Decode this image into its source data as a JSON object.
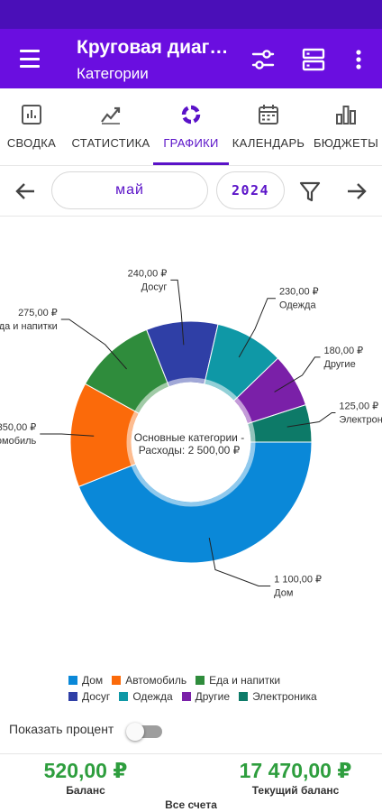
{
  "app_bar": {
    "title": "Круговая диаграмма",
    "subtitle": "Категории",
    "icons": [
      "menu-icon",
      "sliders-icon",
      "storage-icon",
      "more-vert-icon"
    ]
  },
  "tabs": [
    {
      "label": "СВОДКА",
      "icon": "summary-icon",
      "active": false
    },
    {
      "label": "СТАТИСТИКА",
      "icon": "trend-icon",
      "active": false
    },
    {
      "label": "ГРАФИКИ",
      "icon": "donut-icon",
      "active": true
    },
    {
      "label": "КАЛЕНДАРЬ",
      "icon": "calendar-icon",
      "active": false
    },
    {
      "label": "БЮДЖЕТЫ",
      "icon": "bar-chart-icon",
      "active": false
    }
  ],
  "period": {
    "month": "май",
    "year": "2024"
  },
  "chart_data": {
    "type": "pie",
    "center_label_line1": "Основные категории -",
    "center_label_line2": "Расходы: 2 500,00 ₽",
    "slices": [
      {
        "name": "Дом",
        "value": 1100,
        "label": "1 100,00 ₽",
        "color": "#0a88d8"
      },
      {
        "name": "Автомобиль",
        "value": 350,
        "label": "350,00 ₽",
        "color": "#fb6a0a"
      },
      {
        "name": "Еда и напитки",
        "value": 275,
        "label": "275,00 ₽",
        "color": "#2f8c3c"
      },
      {
        "name": "Досуг",
        "value": 240,
        "label": "240,00 ₽",
        "color": "#2f3fa6"
      },
      {
        "name": "Одежда",
        "value": 230,
        "label": "230,00 ₽",
        "color": "#0f98a6"
      },
      {
        "name": "Другие",
        "value": 180,
        "label": "180,00 ₽",
        "color": "#7a20a8"
      },
      {
        "name": "Электроника",
        "value": 125,
        "label": "125,00 ₽",
        "color": "#0d7a68"
      }
    ],
    "legend_position": "bottom"
  },
  "percent_toggle": {
    "label": "Показать процент",
    "on": false
  },
  "footer": {
    "balance_amount": "520,00 ₽",
    "balance_label": "Баланс",
    "current_amount": "17 470,00 ₽",
    "current_label": "Текущий баланс",
    "accounts_label": "Все счета"
  }
}
